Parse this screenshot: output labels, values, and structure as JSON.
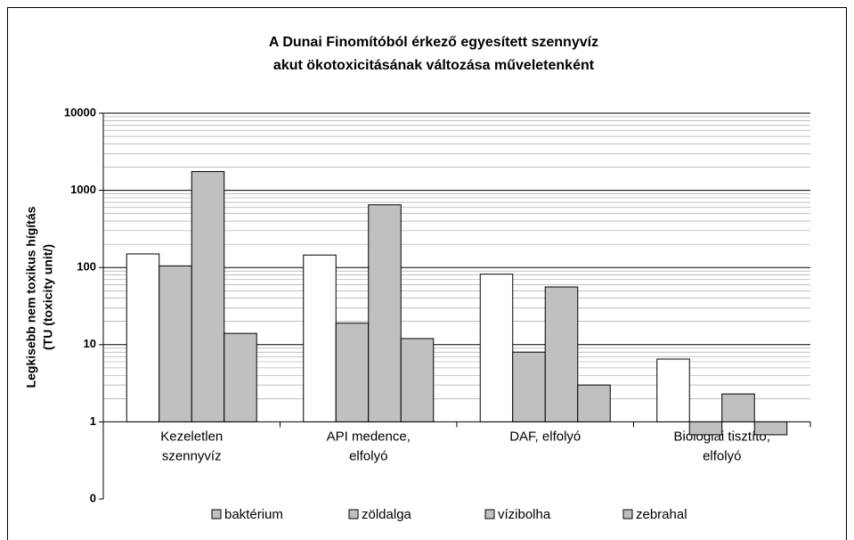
{
  "chart_data": {
    "type": "bar",
    "title": [
      "A Dunai Finomítóból érkező egyesített szennyvíz",
      "akut ökotoxicitásának változása műveletenként"
    ],
    "y_label": [
      "Legkisebb nem toxikus hígítás",
      "(TU (toxicity unit/)"
    ],
    "categories": [
      "Kezeletlen szennyvíz",
      "API medence, elfolyó",
      "DAF, elfolyó",
      "Biológiai tisztító, elfolyó"
    ],
    "series": [
      {
        "name": "baktérium",
        "color": "#ffffff",
        "values": [
          150,
          145,
          82,
          6.5
        ]
      },
      {
        "name": "zöldalga",
        "color": "#c0c0c0",
        "values": [
          105,
          19,
          8,
          0.68
        ]
      },
      {
        "name": "vízibolha",
        "color": "#c0c0c0",
        "values": [
          1750,
          650,
          56,
          2.3
        ]
      },
      {
        "name": "zebrahal",
        "color": "#c0c0c0",
        "values": [
          14,
          12,
          3,
          0.68
        ]
      }
    ],
    "log_scale": true,
    "ylim": [
      0.1,
      10000
    ],
    "yticks": [
      {
        "value": 0.1,
        "label": "0"
      },
      1,
      10,
      100,
      1000,
      10000
    ],
    "grid": true,
    "minor_grid": true,
    "legend": "bottom"
  }
}
